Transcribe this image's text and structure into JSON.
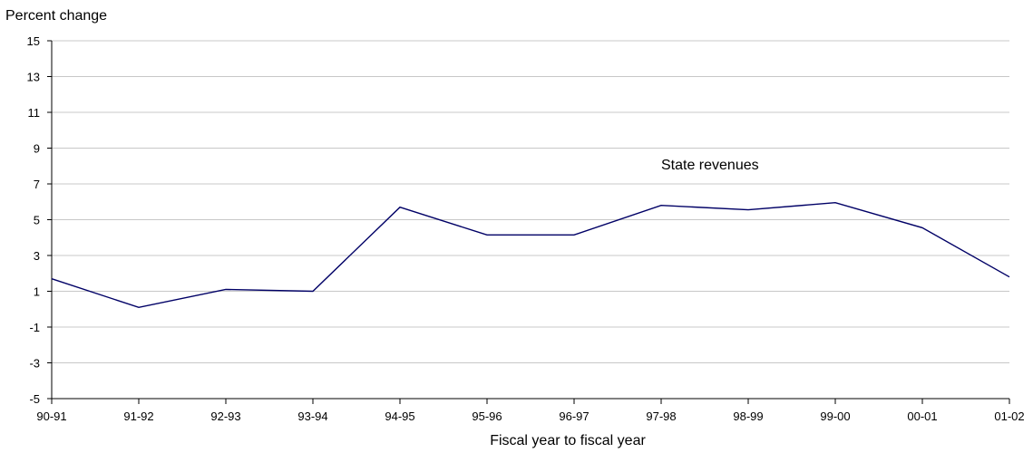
{
  "chart_data": {
    "type": "line",
    "title": "",
    "ylabel": "Percent change",
    "xlabel": "Fiscal year to fiscal year",
    "ylim": [
      -5,
      15
    ],
    "yticks": [
      -5,
      -3,
      -1,
      1,
      3,
      5,
      7,
      9,
      11,
      13,
      15
    ],
    "grid": true,
    "categories": [
      "90-91",
      "91-92",
      "92-93",
      "93-94",
      "94-95",
      "95-96",
      "96-97",
      "97-98",
      "98-99",
      "99-00",
      "00-01",
      "01-02"
    ],
    "series": [
      {
        "name": "State revenues",
        "color": "#000066",
        "values": [
          1.7,
          0.1,
          1.1,
          1.0,
          5.7,
          4.15,
          4.15,
          5.8,
          5.55,
          5.95,
          4.55,
          1.8
        ]
      }
    ],
    "annotations": [
      {
        "text": "State revenues",
        "x": "97-98",
        "y": 7.8
      }
    ]
  }
}
